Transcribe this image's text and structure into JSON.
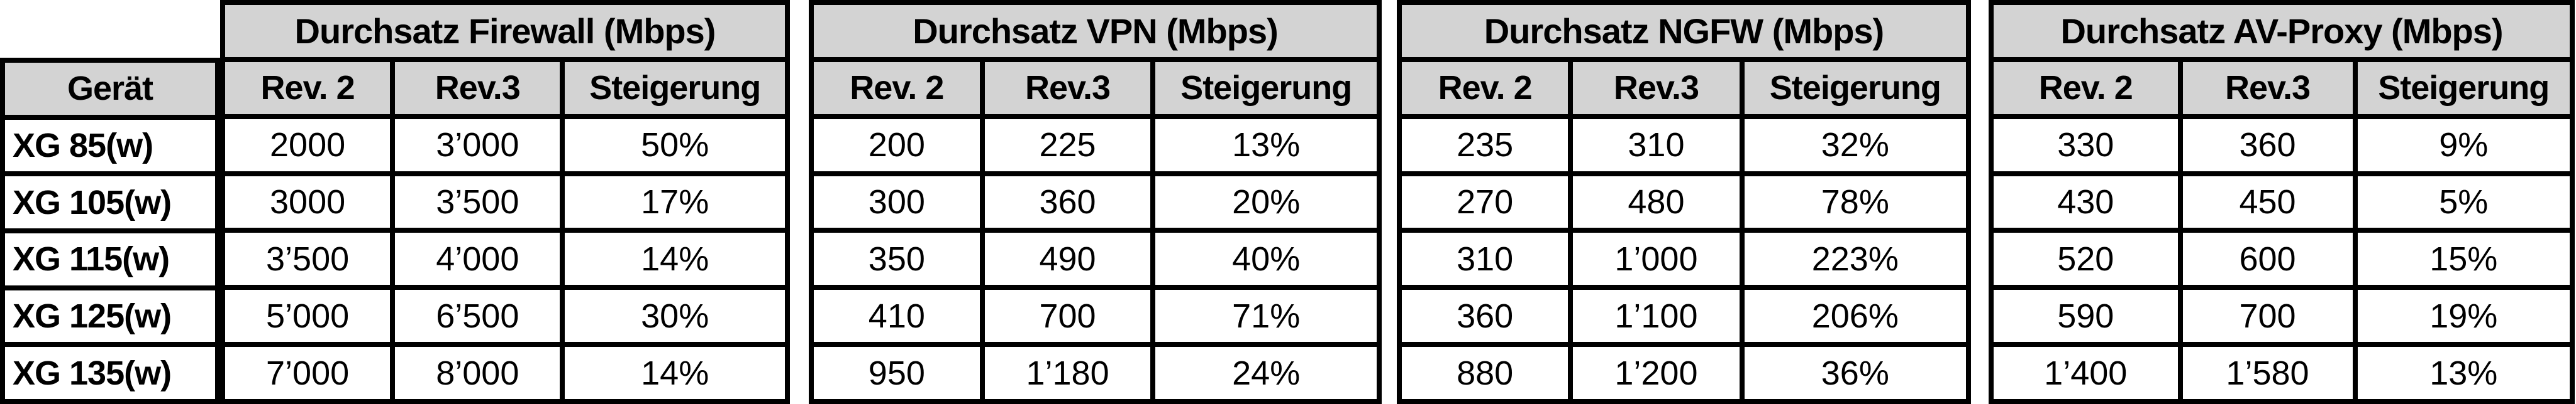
{
  "chart_data": {
    "type": "table",
    "device_column": {
      "header": "Gerät",
      "rows": [
        "XG 85(w)",
        "XG 105(w)",
        "XG 115(w)",
        "XG 125(w)",
        "XG 135(w)"
      ]
    },
    "groups": [
      {
        "title": "Durchsatz Firewall (Mbps)",
        "columns": [
          "Rev. 2",
          "Rev.3",
          "Steigerung"
        ],
        "rows": [
          [
            "2000",
            "3’000",
            "50%"
          ],
          [
            "3000",
            "3’500",
            "17%"
          ],
          [
            "3’500",
            "4’000",
            "14%"
          ],
          [
            "5’000",
            "6’500",
            "30%"
          ],
          [
            "7’000",
            "8’000",
            "14%"
          ]
        ]
      },
      {
        "title": "Durchsatz VPN (Mbps)",
        "columns": [
          "Rev. 2",
          "Rev.3",
          "Steigerung"
        ],
        "rows": [
          [
            "200",
            "225",
            "13%"
          ],
          [
            "300",
            "360",
            "20%"
          ],
          [
            "350",
            "490",
            "40%"
          ],
          [
            "410",
            "700",
            "71%"
          ],
          [
            "950",
            "1’180",
            "24%"
          ]
        ]
      },
      {
        "title": "Durchsatz NGFW (Mbps)",
        "columns": [
          "Rev. 2",
          "Rev.3",
          "Steigerung"
        ],
        "rows": [
          [
            "235",
            "310",
            "32%"
          ],
          [
            "270",
            "480",
            "78%"
          ],
          [
            "310",
            "1’000",
            "223%"
          ],
          [
            "360",
            "1’100",
            "206%"
          ],
          [
            "880",
            "1’200",
            "36%"
          ]
        ]
      },
      {
        "title": "Durchsatz AV-Proxy (Mbps)",
        "columns": [
          "Rev. 2",
          "Rev.3",
          "Steigerung"
        ],
        "rows": [
          [
            "330",
            "360",
            "9%"
          ],
          [
            "430",
            "450",
            "5%"
          ],
          [
            "520",
            "600",
            "15%"
          ],
          [
            "590",
            "700",
            "19%"
          ],
          [
            "1’400",
            "1’580",
            "13%"
          ]
        ]
      }
    ],
    "layout": {
      "legend_position": "none",
      "grid": "on"
    },
    "colors": {
      "header_bg": "#d3d3d3",
      "cell_bg": "#ffffff",
      "border": "#000000",
      "text": "#000000"
    }
  }
}
